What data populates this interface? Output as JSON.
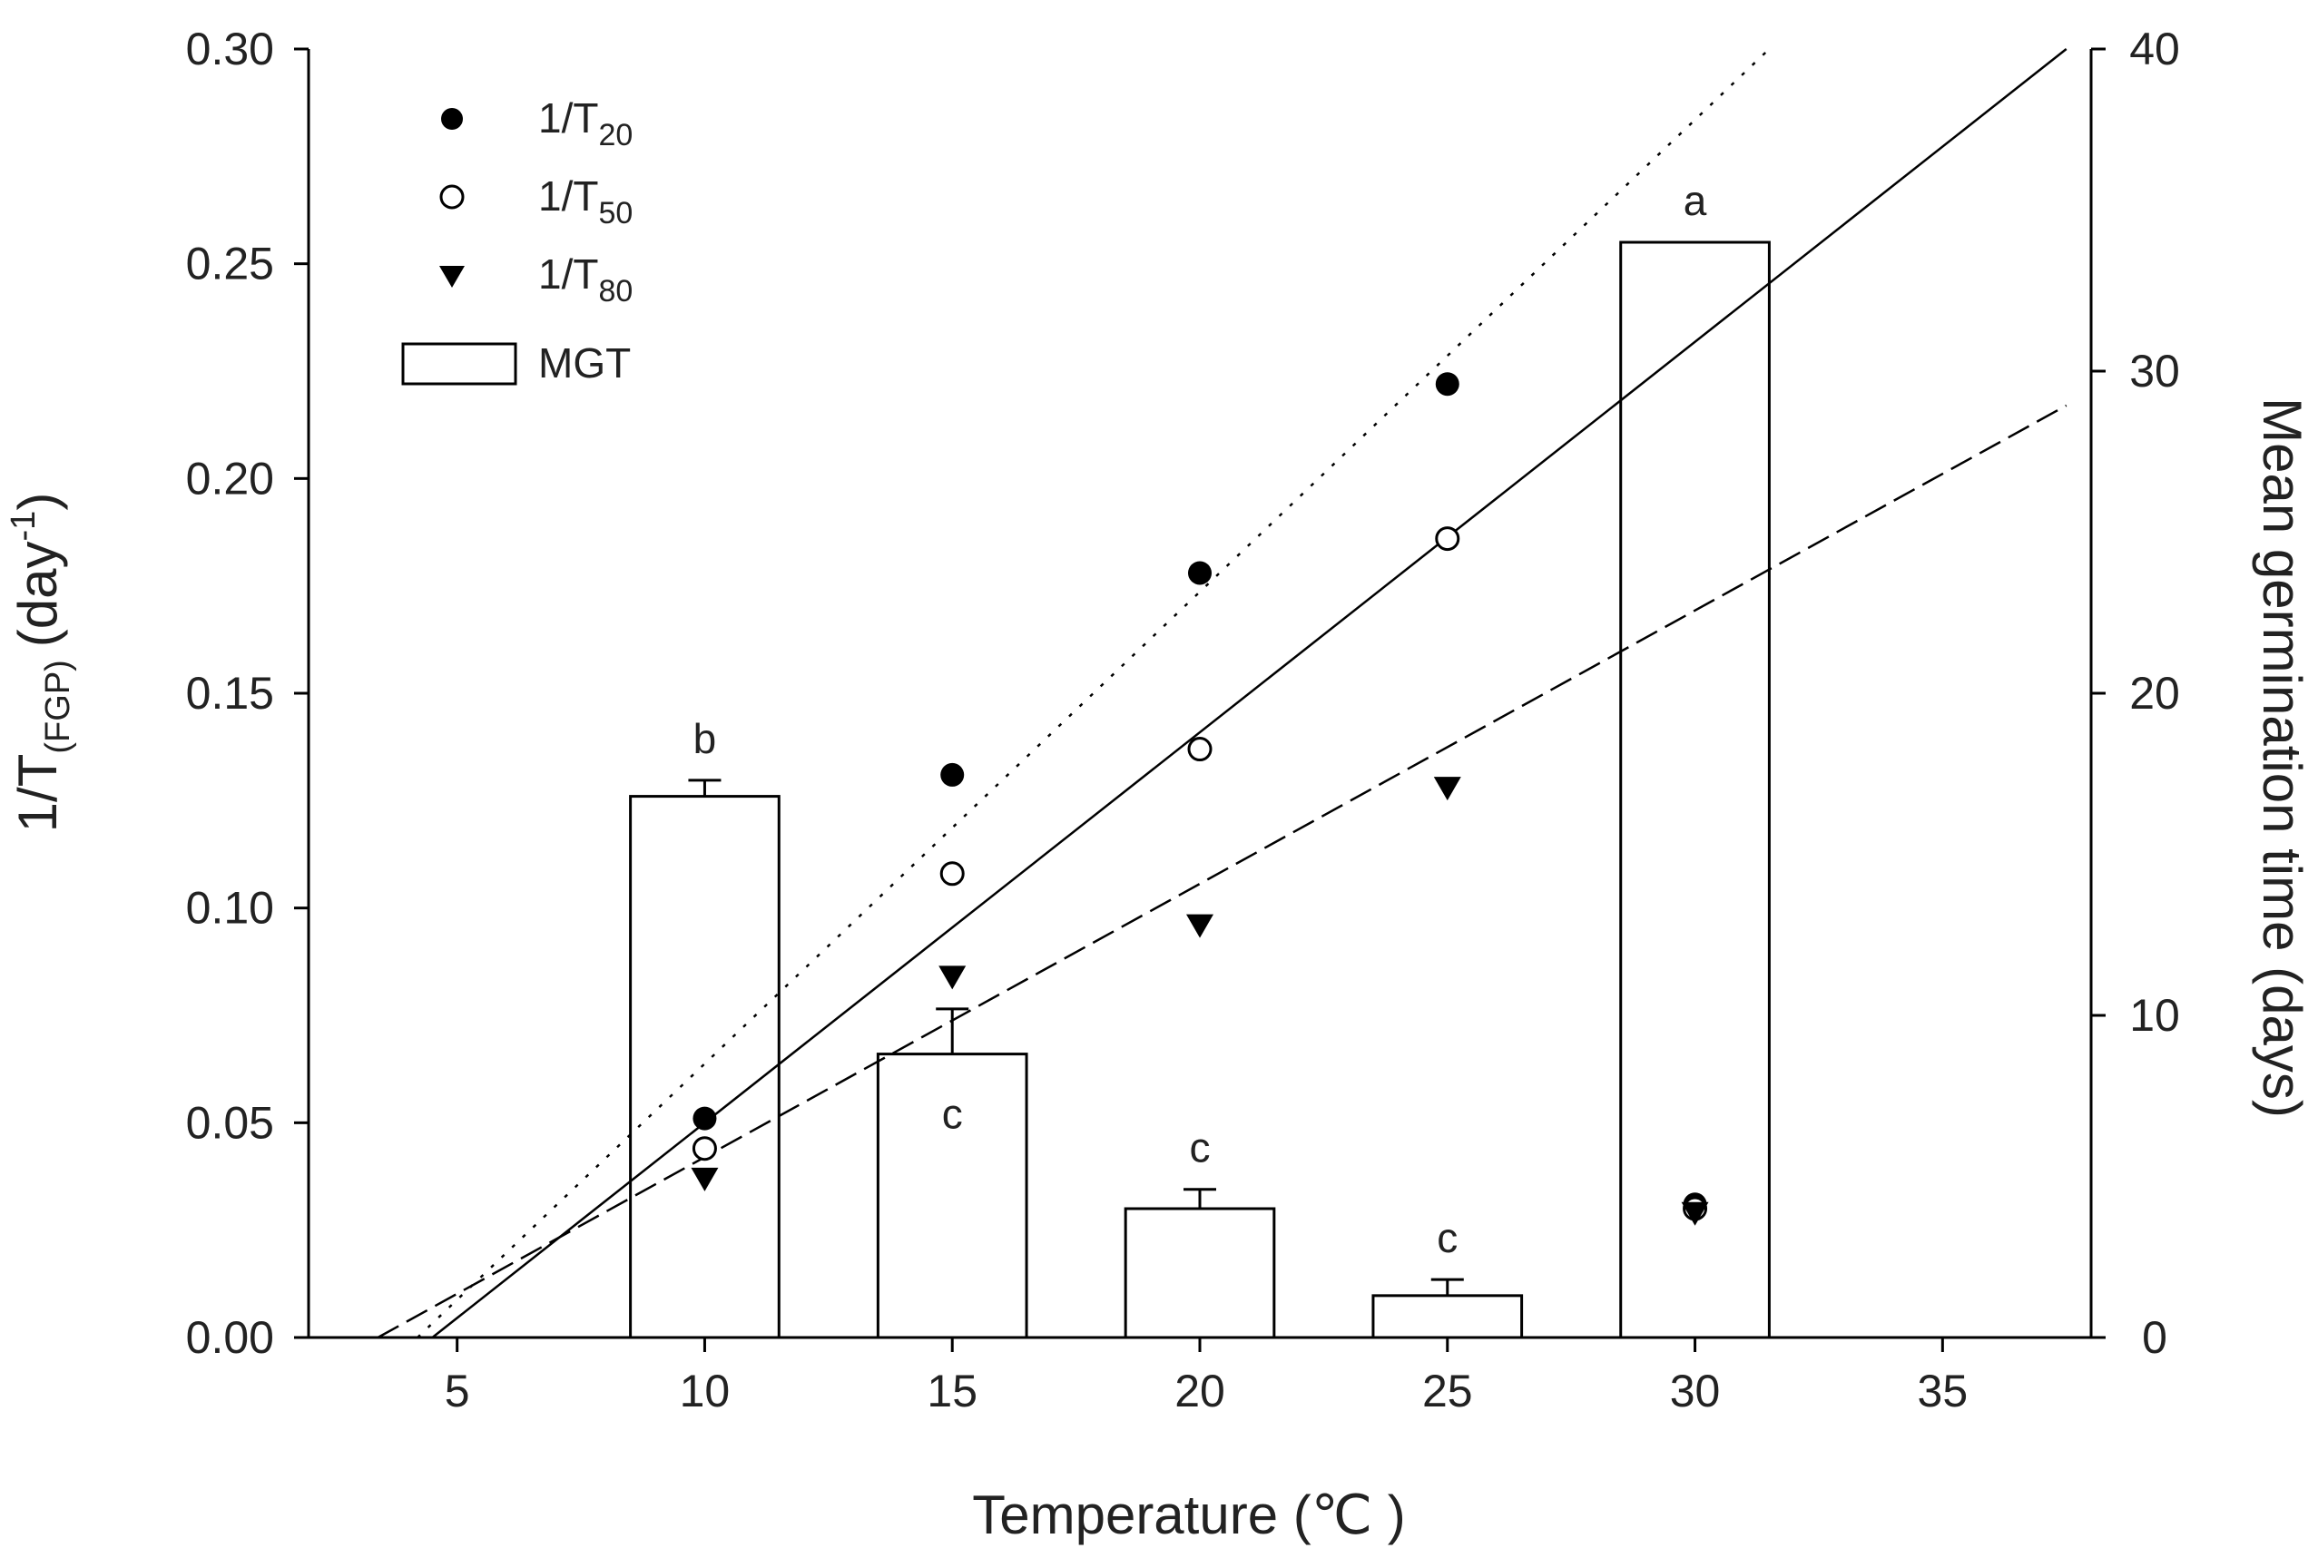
{
  "chart_data": {
    "type": "bar+scatter+line",
    "x_axis": {
      "label": "Temperature (℃ )",
      "range": [
        2,
        38
      ],
      "ticks": [
        5,
        10,
        15,
        20,
        25,
        30,
        35
      ],
      "tick_labels": [
        "5",
        "10",
        "15",
        "20",
        "25",
        "30",
        "35"
      ]
    },
    "y_left": {
      "label_prefix": "1/T",
      "label_subscript": "(FGP)",
      "label_unit_prefix": "(day",
      "label_superscript": "-1",
      "label_suffix": ")",
      "range": [
        0,
        0.3
      ],
      "ticks": [
        0,
        0.05,
        0.1,
        0.15,
        0.2,
        0.25,
        0.3
      ],
      "tick_labels": [
        "0.00",
        "0.05",
        "0.10",
        "0.15",
        "0.20",
        "0.25",
        "0.30"
      ]
    },
    "y_right": {
      "label": "Mean germination time (days)",
      "range": [
        0,
        40
      ],
      "ticks": [
        0,
        10,
        20,
        30,
        40
      ],
      "tick_labels": [
        "0",
        "10",
        "20",
        "30",
        "40"
      ]
    },
    "legend": {
      "placement": "top-left",
      "entries": [
        {
          "key": "t20",
          "prefix": "1/T",
          "sub": "20",
          "marker": "filled-circle"
        },
        {
          "key": "t50",
          "prefix": "1/T",
          "sub": "50",
          "marker": "open-circle"
        },
        {
          "key": "t80",
          "prefix": "1/T",
          "sub": "80",
          "marker": "filled-triangle-down"
        },
        {
          "key": "mgt",
          "label": "MGT",
          "marker": "open-bar"
        }
      ]
    },
    "bars": {
      "name": "MGT",
      "axis": "right",
      "x": [
        10,
        15,
        20,
        25,
        30
      ],
      "values": [
        16.8,
        8.8,
        4.0,
        1.3,
        34.0
      ],
      "errors": [
        0.5,
        1.4,
        0.6,
        0.5,
        0.0
      ],
      "letters": [
        "b",
        "c",
        "c",
        "c",
        "a"
      ]
    },
    "series": [
      {
        "name": "1/T20",
        "marker": "filled-circle",
        "x": [
          10,
          15,
          20,
          25,
          30
        ],
        "y": [
          0.051,
          0.131,
          0.178,
          0.222,
          0.031
        ]
      },
      {
        "name": "1/T50",
        "marker": "open-circle",
        "x": [
          10,
          15,
          20,
          25,
          30
        ],
        "y": [
          0.044,
          0.108,
          0.137,
          0.186,
          0.03
        ]
      },
      {
        "name": "1/T80",
        "marker": "filled-triangle-down",
        "x": [
          10,
          15,
          20,
          25,
          30
        ],
        "y": [
          0.037,
          0.084,
          0.096,
          0.128,
          0.029
        ]
      }
    ],
    "fits": [
      {
        "name": "1/T20 fit",
        "style": "dotted",
        "x": [
          4.2,
          31.5
        ],
        "y": [
          0.0,
          0.3
        ]
      },
      {
        "name": "1/T50 fit",
        "style": "solid",
        "x": [
          4.5,
          37.5
        ],
        "y": [
          0.0,
          0.3
        ]
      },
      {
        "name": "1/T80 fit",
        "style": "dashed",
        "x": [
          3.4,
          37.5
        ],
        "y": [
          0.0,
          0.217
        ]
      }
    ]
  }
}
